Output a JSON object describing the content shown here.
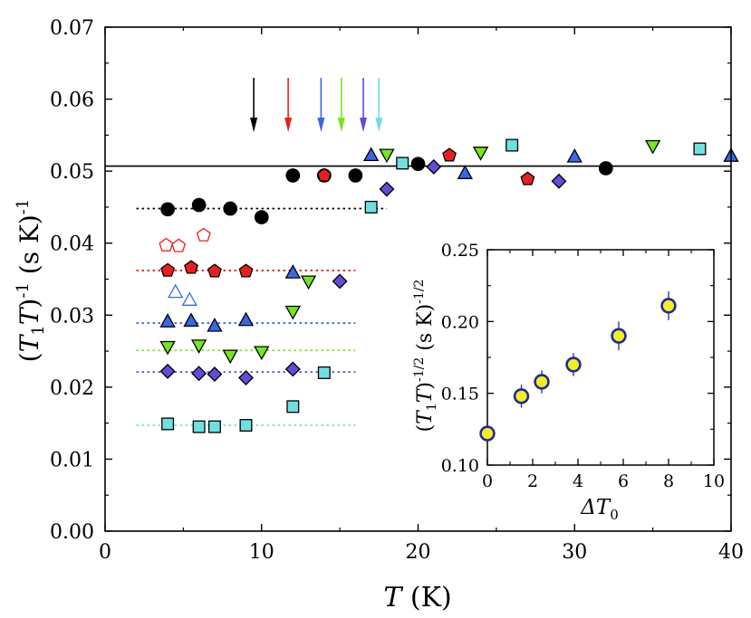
{
  "chart_data": [
    {
      "type": "scatter",
      "title": "",
      "xlabel": "T (K)",
      "ylabel": "(T1T)^-1 (s K)^-1",
      "xlabel_parts": {
        "var": "T",
        "unit": " (K)"
      },
      "ylabel_parts": {
        "a": "(",
        "b": "T",
        "c": "1",
        "d": "T",
        "e": ")",
        "f": "-1",
        "g": " (s K)",
        "h": "-1"
      },
      "xlim": [
        0,
        40
      ],
      "ylim": [
        0,
        0.07
      ],
      "xticks": [
        0,
        10,
        20,
        30,
        40
      ],
      "xtick_labels": [
        "0",
        "10",
        "20",
        "30",
        "40"
      ],
      "yticks": [
        0,
        0.01,
        0.02,
        0.03,
        0.04,
        0.05,
        0.06,
        0.07
      ],
      "ytick_labels": [
        "0.00",
        "0.01",
        "0.02",
        "0.03",
        "0.04",
        "0.05",
        "0.06",
        "0.07"
      ],
      "solid_line": {
        "y": 0.0507,
        "color": "#000000"
      },
      "arrows": [
        {
          "x": 9.5,
          "color": "#000000"
        },
        {
          "x": 11.7,
          "color": "#e8201e"
        },
        {
          "x": 13.8,
          "color": "#3b66e8"
        },
        {
          "x": 15.1,
          "color": "#76e61e"
        },
        {
          "x": 16.5,
          "color": "#5f4cd9"
        },
        {
          "x": 17.5,
          "color": "#6fe0e0"
        }
      ],
      "series": [
        {
          "name": "black-circles",
          "marker": "circle",
          "color": "#000000",
          "x": [
            4,
            6,
            8,
            10,
            12,
            14,
            16,
            20,
            32
          ],
          "y": [
            0.0447,
            0.0453,
            0.0448,
            0.0436,
            0.0494,
            0.0494,
            0.0494,
            0.051,
            0.0504
          ],
          "dotted": {
            "y": 0.0448,
            "x0": 2,
            "x1": 18
          }
        },
        {
          "name": "red-pentagons",
          "marker": "pentagon",
          "color": "#e8201e",
          "x": [
            4,
            5.5,
            7,
            9,
            14,
            22,
            27
          ],
          "y": [
            0.0362,
            0.0366,
            0.0361,
            0.0361,
            0.0494,
            0.0522,
            0.0489
          ],
          "dotted": {
            "y": 0.0362,
            "x0": 2,
            "x1": 16
          }
        },
        {
          "name": "red-open-pentagons",
          "marker": "pentagon-open",
          "color": "#e8201e",
          "x": [
            3.9,
            4.7,
            6.3
          ],
          "y": [
            0.0397,
            0.0396,
            0.0411
          ]
        },
        {
          "name": "blue-triangles",
          "marker": "triangle-up",
          "color": "#3b66e8",
          "x": [
            4,
            5.5,
            7,
            9,
            12,
            17,
            23,
            30,
            40
          ],
          "y": [
            0.0291,
            0.0292,
            0.0285,
            0.0293,
            0.0359,
            0.0522,
            0.0497,
            0.052,
            0.0521
          ],
          "dotted": {
            "y": 0.0289,
            "x0": 2,
            "x1": 16
          }
        },
        {
          "name": "blue-open-triangles",
          "marker": "triangle-open",
          "color": "#3b66e8",
          "x": [
            4.5,
            5.4
          ],
          "y": [
            0.0332,
            0.0321
          ]
        },
        {
          "name": "green-triangles",
          "marker": "triangle-down",
          "color": "#76e61e",
          "x": [
            4,
            6,
            8,
            10,
            12,
            13,
            18,
            24,
            35
          ],
          "y": [
            0.0256,
            0.0258,
            0.0244,
            0.0249,
            0.0305,
            0.0347,
            0.0523,
            0.0526,
            0.0535
          ],
          "dotted": {
            "y": 0.0251,
            "x0": 2,
            "x1": 16
          }
        },
        {
          "name": "purple-diamonds",
          "marker": "diamond",
          "color": "#5f4cd9",
          "x": [
            4,
            6,
            7,
            9,
            12,
            15,
            18,
            21,
            29
          ],
          "y": [
            0.0222,
            0.0219,
            0.0218,
            0.0213,
            0.0225,
            0.0347,
            0.0475,
            0.0506,
            0.0486
          ],
          "dotted": {
            "y": 0.0221,
            "x0": 2,
            "x1": 16
          }
        },
        {
          "name": "cyan-squares",
          "marker": "square",
          "color": "#6fe0e0",
          "x": [
            4,
            6,
            7,
            9,
            12,
            14,
            17,
            19,
            26,
            38
          ],
          "y": [
            0.0149,
            0.0145,
            0.0145,
            0.0147,
            0.0173,
            0.022,
            0.045,
            0.0511,
            0.0536,
            0.0531
          ],
          "dotted": {
            "y": 0.0147,
            "x0": 2,
            "x1": 16
          }
        }
      ]
    },
    {
      "type": "scatter",
      "title": "",
      "xlabel": "ΔT0",
      "ylabel": "(T1T)^-1/2 (s K)^-1/2",
      "xlabel_parts": {
        "a": "ΔT",
        "b": "0"
      },
      "ylabel_parts": {
        "a": "(",
        "b": "T",
        "c": "1",
        "d": "T",
        "e": ")",
        "f": "-1/2",
        "g": " (s K)",
        "h": "-1/2"
      },
      "xlim": [
        0,
        10
      ],
      "ylim": [
        0.1,
        0.25
      ],
      "xticks": [
        0,
        2,
        4,
        6,
        8,
        10
      ],
      "xtick_labels": [
        "0",
        "2",
        "4",
        "6",
        "8",
        "10"
      ],
      "yticks": [
        0.1,
        0.15,
        0.2,
        0.25
      ],
      "ytick_labels": [
        "0.10",
        "0.15",
        "0.20",
        "0.25"
      ],
      "series": [
        {
          "name": "inset-points",
          "marker": "circle",
          "color": "#f4ee1e",
          "edge": "#1f2a9e",
          "x": [
            0,
            1.5,
            2.4,
            3.8,
            5.8,
            8
          ],
          "y": [
            0.122,
            0.148,
            0.158,
            0.17,
            0.19,
            0.211
          ],
          "err": [
            0.005,
            0.008,
            0.008,
            0.008,
            0.01,
            0.01
          ]
        }
      ]
    }
  ]
}
